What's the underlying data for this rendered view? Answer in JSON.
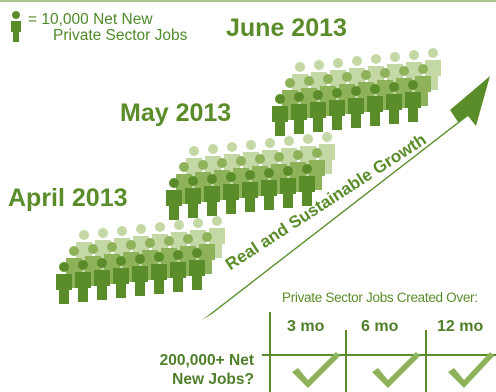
{
  "legend": {
    "unit_text_line1": "= 10,000 Net New",
    "unit_text_line2": "Private Sector Jobs",
    "icon": "person-icon"
  },
  "periods": [
    {
      "label": "June 2013"
    },
    {
      "label": "May 2013"
    },
    {
      "label": "April 2013"
    }
  ],
  "arrow_label": "Real and Sustainable Growth",
  "table": {
    "header": "Private Sector Jobs Created Over:",
    "columns": [
      "3 mo",
      "6 mo",
      "12 mo"
    ],
    "row_label_line1": "200,000+ Net",
    "row_label_line2": "New Jobs?",
    "checks": [
      "check-icon",
      "check-icon",
      "check-icon"
    ]
  },
  "colors": {
    "dark_green": "#5b8c2a",
    "mid_green": "#8db25a",
    "light_green": "#c4d8a6"
  }
}
